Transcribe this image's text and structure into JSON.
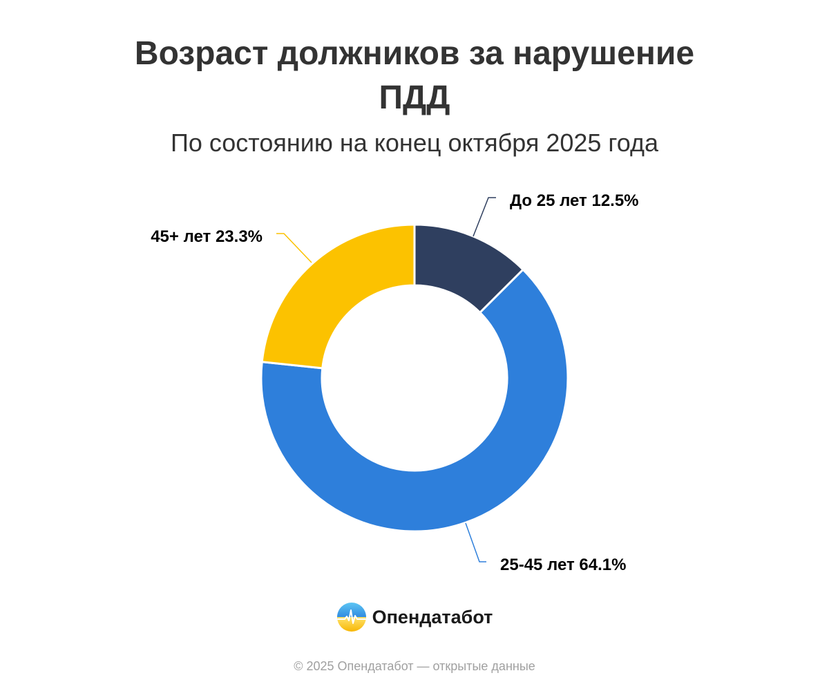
{
  "title": "Возраст должников за нарушение ПДД",
  "subtitle": "По состоянию на конец октября 2025 года",
  "chart_data": {
    "type": "pie",
    "variant": "donut",
    "title": "Возраст должников за нарушение ПДД",
    "subtitle": "По состоянию на конец октября 2025 года",
    "slices": [
      {
        "name": "До 25 лет",
        "value": 12.5,
        "label": "До 25 лет 12.5%",
        "color": "#2f3f5f"
      },
      {
        "name": "25-45 лет",
        "value": 64.1,
        "label": "25-45 лет 64.1%",
        "color": "#2e7fdb"
      },
      {
        "name": "45+ лет",
        "value": 23.3,
        "label": "45+ лет 23.3%",
        "color": "#fcc200"
      }
    ],
    "unit": "%",
    "legend": "none"
  },
  "logo": {
    "text": "Опендатабот",
    "icon": "opendatabot-logo-icon"
  },
  "footer": "© 2025 Опендатабот — открытые данные"
}
